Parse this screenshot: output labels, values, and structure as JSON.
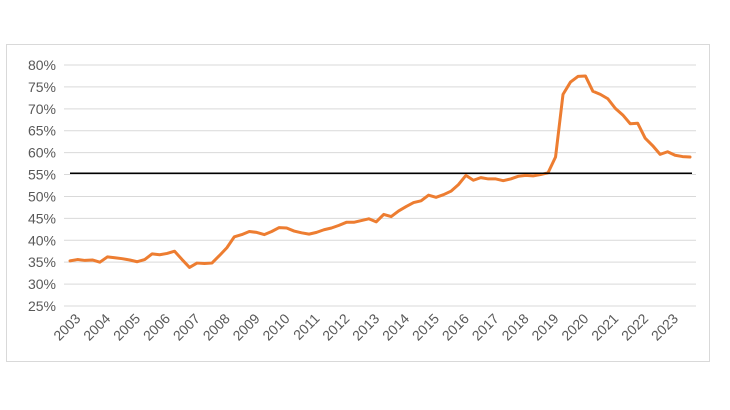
{
  "chart_data": {
    "type": "line",
    "title": "",
    "xlabel": "",
    "ylabel": "",
    "x_tick_labels": [
      "2003",
      "2004",
      "2005",
      "2006",
      "2007",
      "2008",
      "2009",
      "2010",
      "2011",
      "2012",
      "2013",
      "2014",
      "2015",
      "2016",
      "2017",
      "2018",
      "2019",
      "2020",
      "2021",
      "2022",
      "2023"
    ],
    "y_tick_labels": [
      "25%",
      "30%",
      "35%",
      "40%",
      "45%",
      "50%",
      "55%",
      "60%",
      "65%",
      "70%",
      "75%",
      "80%"
    ],
    "ylim": [
      25,
      80
    ],
    "xlim": [
      2003.0,
      2023.75
    ],
    "grid": "horizontal",
    "legend": "none",
    "reference_line": {
      "value": 55.3,
      "color": "#000000"
    },
    "series": [
      {
        "color": "#ED7D31",
        "x": [
          2003.0,
          2003.25,
          2003.5,
          2003.75,
          2004.0,
          2004.25,
          2004.5,
          2004.75,
          2005.0,
          2005.25,
          2005.5,
          2005.75,
          2006.0,
          2006.25,
          2006.5,
          2006.75,
          2007.0,
          2007.25,
          2007.5,
          2007.75,
          2008.0,
          2008.25,
          2008.5,
          2008.75,
          2009.0,
          2009.25,
          2009.5,
          2009.75,
          2010.0,
          2010.25,
          2010.5,
          2010.75,
          2011.0,
          2011.25,
          2011.5,
          2011.75,
          2012.0,
          2012.25,
          2012.5,
          2012.75,
          2013.0,
          2013.25,
          2013.5,
          2013.75,
          2014.0,
          2014.25,
          2014.5,
          2014.75,
          2015.0,
          2015.25,
          2015.5,
          2015.75,
          2016.0,
          2016.25,
          2016.5,
          2016.75,
          2017.0,
          2017.25,
          2017.5,
          2017.75,
          2018.0,
          2018.25,
          2018.5,
          2018.75,
          2019.0,
          2019.25,
          2019.5,
          2019.75,
          2020.0,
          2020.25,
          2020.5,
          2020.75,
          2021.0,
          2021.25,
          2021.5,
          2021.75,
          2022.0,
          2022.25,
          2022.5,
          2022.75,
          2023.0,
          2023.25,
          2023.5,
          2023.75
        ],
        "values": [
          35.3,
          35.6,
          35.4,
          35.5,
          35.0,
          36.2,
          36.0,
          35.8,
          35.5,
          35.1,
          35.6,
          36.9,
          36.7,
          37.0,
          37.5,
          35.6,
          33.8,
          34.8,
          34.7,
          34.8,
          36.5,
          38.3,
          40.8,
          41.3,
          42.0,
          41.8,
          41.3,
          42.0,
          42.9,
          42.8,
          42.1,
          41.7,
          41.4,
          41.8,
          42.4,
          42.8,
          43.4,
          44.1,
          44.1,
          44.5,
          44.9,
          44.2,
          45.9,
          45.4,
          46.7,
          47.7,
          48.6,
          49.0,
          50.3,
          49.8,
          50.4,
          51.2,
          52.7,
          54.8,
          53.7,
          54.3,
          54.0,
          54.0,
          53.6,
          54.0,
          54.6,
          54.8,
          54.7,
          55.0,
          55.4,
          59.0,
          73.3,
          76.1,
          77.4,
          77.5,
          74.0,
          73.3,
          72.3,
          70.1,
          68.6,
          66.6,
          66.7,
          63.3,
          61.6,
          59.6,
          60.2,
          59.4,
          59.1,
          59.0
        ]
      }
    ]
  }
}
